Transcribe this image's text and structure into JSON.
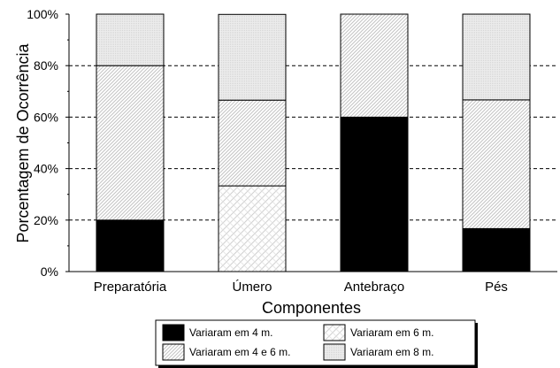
{
  "chart_data": {
    "type": "bar",
    "stacked": true,
    "percent_stacked": true,
    "categories": [
      "Preparatória",
      "Úmero",
      "Antebraço",
      "Pés"
    ],
    "series": [
      {
        "name": "Variaram em 4 m.",
        "values": [
          20,
          0,
          60,
          16.7
        ],
        "fill": "solid",
        "color": "#000000"
      },
      {
        "name": "Variaram em 6 m.",
        "values": [
          0,
          33.3,
          0,
          0
        ],
        "fill": "crosshatch",
        "color": "#e6e6e6"
      },
      {
        "name": "Variaram em 4 e 6 m.",
        "values": [
          60,
          33.3,
          40,
          50
        ],
        "fill": "diagonal",
        "color": "#d8d8d8"
      },
      {
        "name": "Variaram em 8 m.",
        "values": [
          20,
          33.3,
          0,
          33.3
        ],
        "fill": "dotted",
        "color": "#e8e8e8"
      }
    ],
    "xlabel": "Componentes",
    "ylabel": "Porcentagem de Ocorrência",
    "ylim": [
      0,
      100
    ],
    "yticks": [
      "0%",
      "20%",
      "40%",
      "60%",
      "80%",
      "100%"
    ],
    "grid": "horizontal-dashed",
    "legend_position": "bottom"
  }
}
